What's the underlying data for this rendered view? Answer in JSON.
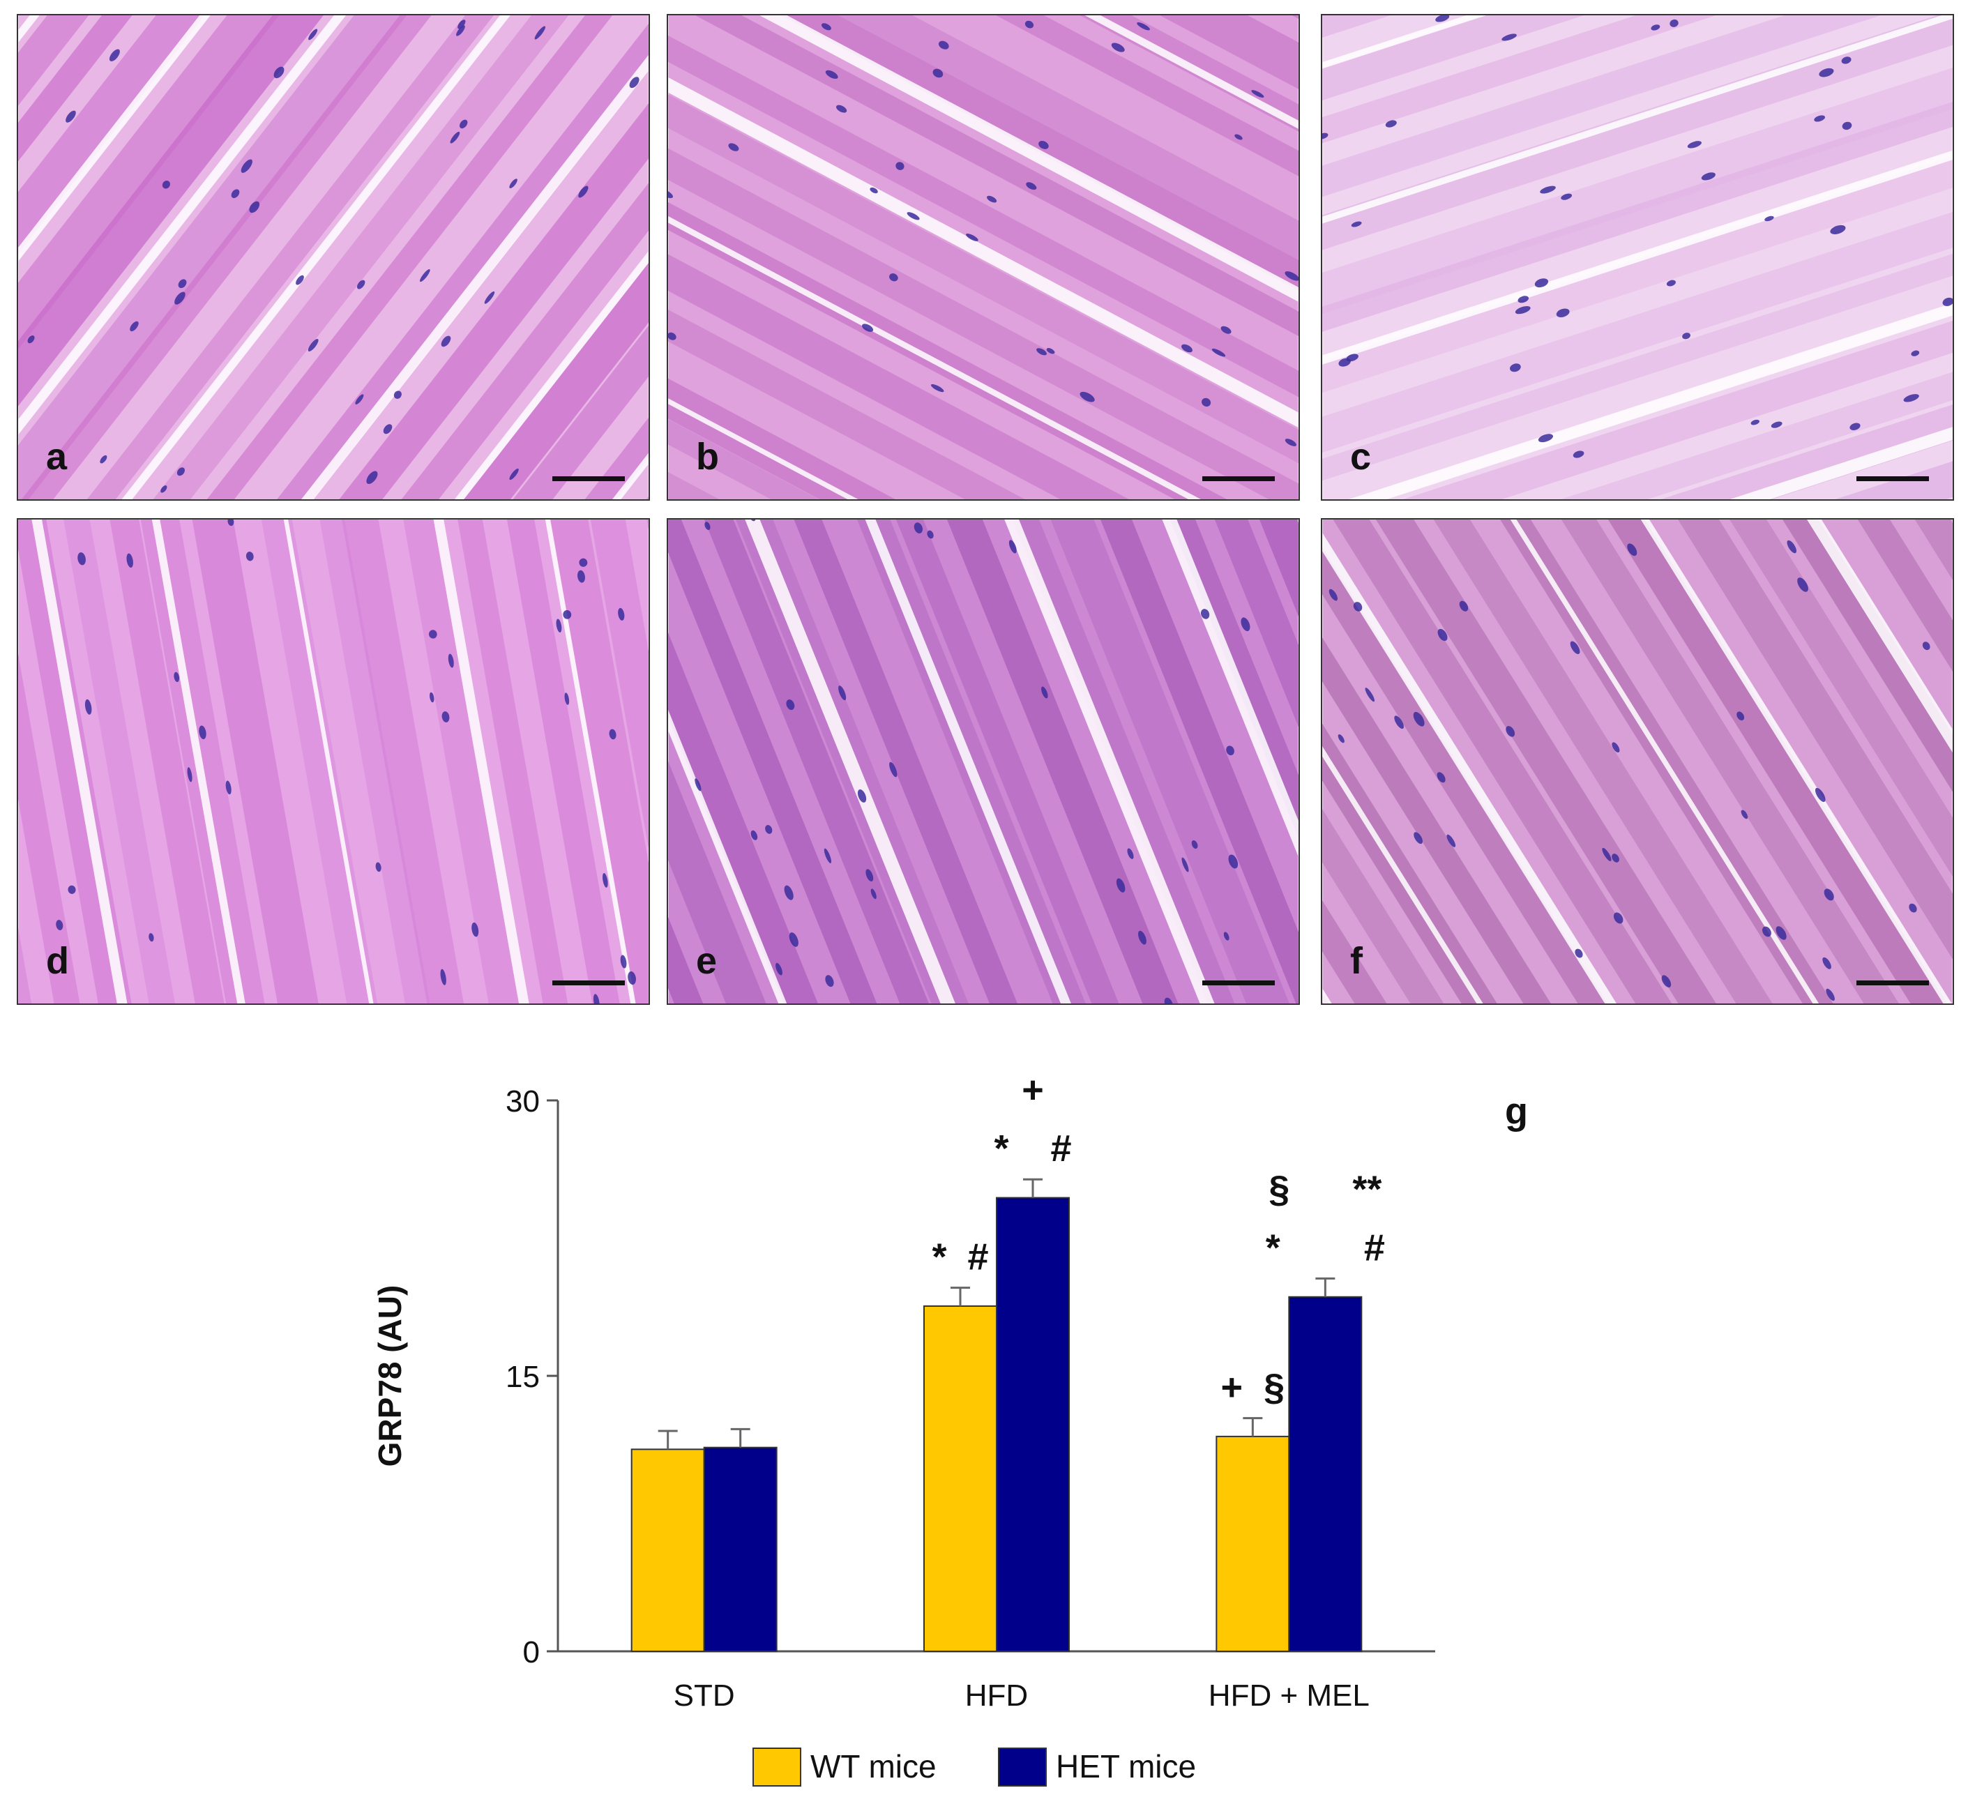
{
  "panels": [
    {
      "label": "a",
      "tone": "#e9b7e6",
      "fiber": "#c86ac9",
      "angle": -52
    },
    {
      "label": "b",
      "tone": "#dfa2dd",
      "fiber": "#c674c6",
      "angle": 28
    },
    {
      "label": "c",
      "tone": "#f0d5f1",
      "fiber": "#dfb0e2",
      "angle": -18
    },
    {
      "label": "d",
      "tone": "#e6a6e6",
      "fiber": "#d47fd6",
      "angle": 80
    },
    {
      "label": "e",
      "tone": "#cd88d4",
      "fiber": "#a95cb9",
      "angle": 68
    },
    {
      "label": "f",
      "tone": "#d8a0d6",
      "fiber": "#b06ab0",
      "angle": 58
    }
  ],
  "chart_data": {
    "type": "bar",
    "panel_label": "g",
    "categories": [
      "STD",
      "HFD",
      "HFD + MEL"
    ],
    "ylabel": "GRP78 (AU)",
    "ylim": [
      0,
      30
    ],
    "yticks": [
      "0",
      "15",
      "30"
    ],
    "grid": false,
    "legend_position": "bottom",
    "series": [
      {
        "name": "WT mice",
        "color": "#ffc800",
        "values": [
          11.0,
          18.8,
          11.7
        ],
        "errors": [
          1.0,
          1.0,
          1.0
        ]
      },
      {
        "name": "HET mice",
        "color": "#00008b",
        "values": [
          11.1,
          24.7,
          19.3
        ],
        "errors": [
          1.0,
          1.0,
          1.0
        ]
      }
    ],
    "annotations": [
      {
        "series": 0,
        "category": 1,
        "lines": [
          "*  #"
        ]
      },
      {
        "series": 1,
        "category": 1,
        "lines": [
          "+",
          "*    #"
        ]
      },
      {
        "series": 0,
        "category": 2,
        "lines": [
          "+  §"
        ]
      },
      {
        "series": 1,
        "category": 2,
        "lines": [
          "§      **",
          "*        #"
        ]
      }
    ]
  }
}
